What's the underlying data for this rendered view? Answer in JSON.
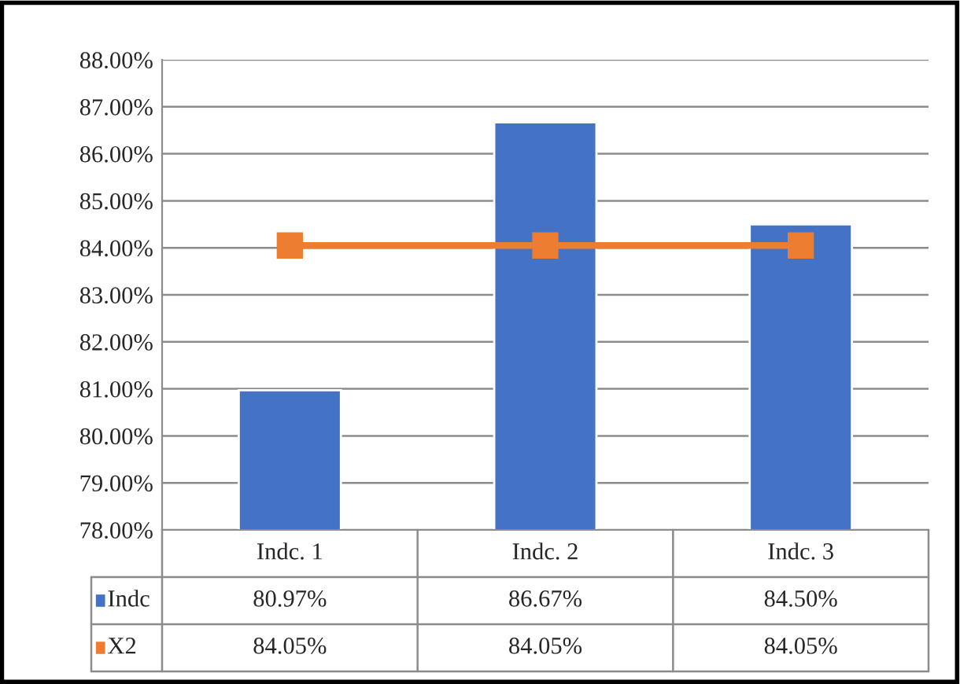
{
  "chart_data": {
    "type": "bar",
    "categories": [
      "Indc. 1",
      "Indc. 2",
      "Indc. 3"
    ],
    "series": [
      {
        "name": "Indc",
        "color": "#4472c4",
        "values": [
          80.97,
          86.67,
          84.5
        ],
        "value_labels": [
          "80.97%",
          "86.67%",
          "84.50%"
        ]
      },
      {
        "name": "X2",
        "type": "line",
        "color": "#ed7d31",
        "values": [
          84.05,
          84.05,
          84.05
        ],
        "value_labels": [
          "84.05%",
          "84.05%",
          "84.05%"
        ]
      }
    ],
    "ylim": [
      78,
      88
    ],
    "yticks": [
      {
        "value": 78,
        "label": "78.00%"
      },
      {
        "value": 79,
        "label": "79.00%"
      },
      {
        "value": 80,
        "label": "80.00%"
      },
      {
        "value": 81,
        "label": "81.00%"
      },
      {
        "value": 82,
        "label": "82.00%"
      },
      {
        "value": 83,
        "label": "83.00%"
      },
      {
        "value": 84,
        "label": "84.00%"
      },
      {
        "value": 85,
        "label": "85.00%"
      },
      {
        "value": 86,
        "label": "86.00%"
      },
      {
        "value": 87,
        "label": "87.00%"
      },
      {
        "value": 88,
        "label": "88.00%"
      }
    ],
    "grid": "y",
    "legend": "bottom left",
    "marker": "square",
    "line_style": "solid"
  }
}
